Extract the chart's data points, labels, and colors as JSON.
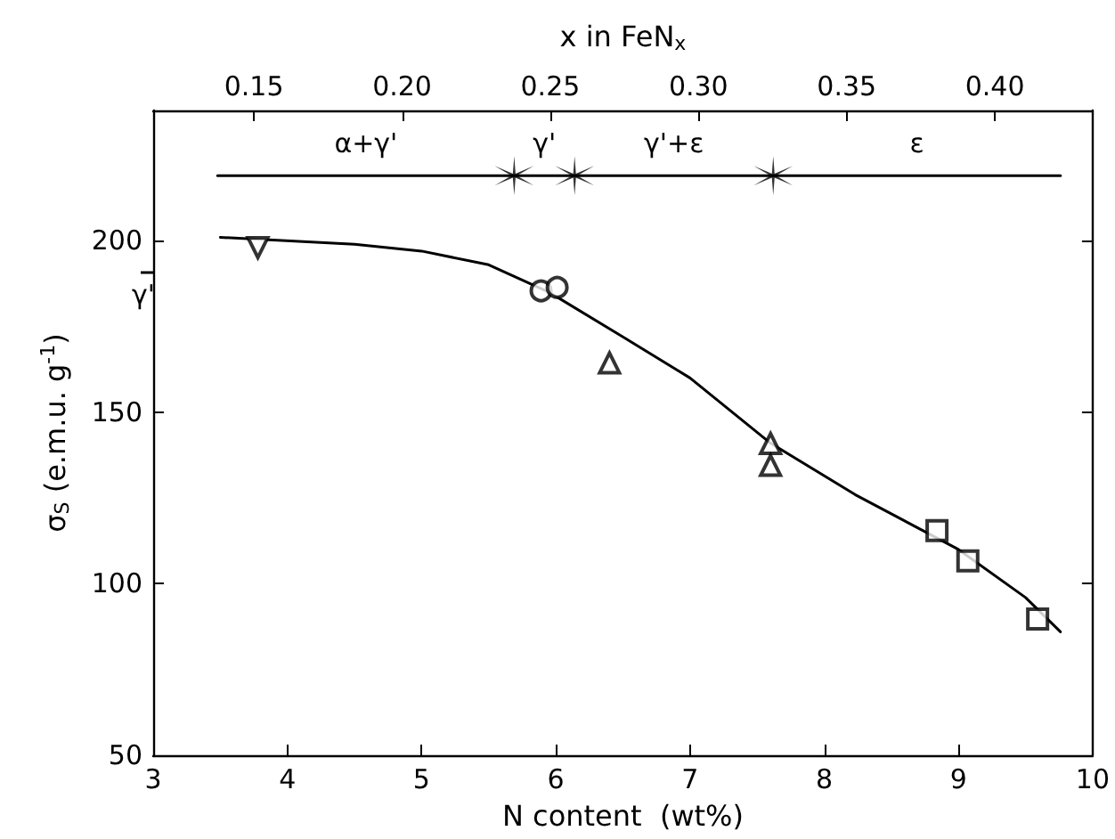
{
  "chart_data": {
    "type": "scatter",
    "xlabel": "N content  (wt%)",
    "ylabel": "σ$_{S}$ (e.m.u. g$^{-1}$)",
    "x2label": "x in FeN$_{x}$",
    "xlim": [
      3,
      10
    ],
    "xticks": [
      3,
      4,
      5,
      6,
      7,
      8,
      9,
      10
    ],
    "ylim": [
      50,
      238
    ],
    "yticks": [
      50,
      100,
      150,
      200
    ],
    "x2lim": [
      0.116,
      0.433
    ],
    "x2ticks": [
      0.15,
      {
        "value": 0.2,
        "label": "0.20"
      },
      0.25,
      {
        "value": 0.3,
        "label": "0.30"
      },
      0.35,
      {
        "value": 0.4,
        "label": "0.40"
      }
    ],
    "grid": false,
    "series": [
      {
        "type": "line",
        "color": "#000000",
        "marker": "none",
        "line_style": "solid",
        "x": [
          3.5,
          4.5,
          5.0,
          5.5,
          5.95,
          6.5,
          7.0,
          7.6,
          8.23,
          9.0,
          9.5,
          9.76
        ],
        "values": [
          201,
          199,
          197,
          193,
          185,
          172,
          160,
          141,
          126,
          110,
          96,
          86
        ]
      },
      {
        "color": "#000000",
        "marker": "triangle-down",
        "x": [
          3.78
        ],
        "values": [
          198
        ]
      },
      {
        "color": "#000000",
        "marker": "circle",
        "x": [
          5.89,
          6.01
        ],
        "values": [
          185.4,
          186.4
        ]
      },
      {
        "color": "#000000",
        "marker": "triangle",
        "x": [
          6.4,
          7.6,
          7.6
        ],
        "values": [
          164.4,
          140.9,
          134.5
        ]
      },
      {
        "color": "#000000",
        "marker": "square",
        "x": [
          8.84,
          9.07,
          9.59
        ],
        "values": [
          115.5,
          106.7,
          89.7
        ]
      },
      {
        "type": "line",
        "color": "#000000",
        "marker": "none",
        "line_style": "solid",
        "x": [
          3.48,
          9.76
        ],
        "values": [
          219,
          219
        ]
      },
      {
        "color": "#000000",
        "marker": "cross",
        "x": [
          5.69,
          6.14,
          7.62
        ],
        "values": [
          219,
          219,
          219
        ]
      }
    ],
    "annotations": [
      "α+γ'",
      "γ'",
      "γ'+ε",
      "ε",
      "γ'"
    ]
  }
}
